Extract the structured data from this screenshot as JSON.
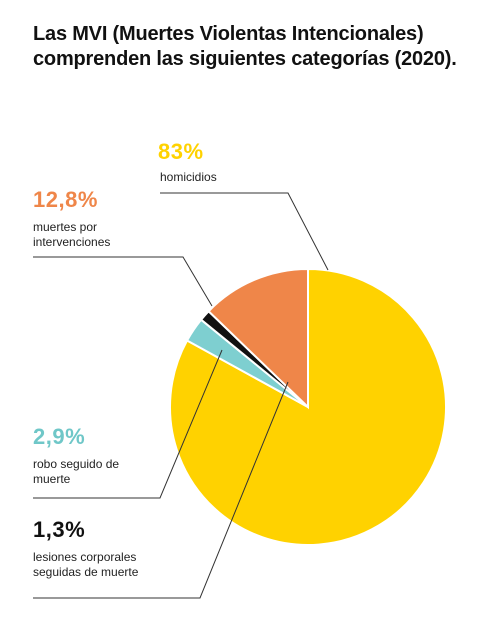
{
  "title": "Las MVI (Muertes Violentas Intencionales) comprenden las siguientes categorías (2020).",
  "chart_data": {
    "type": "pie",
    "slices": [
      {
        "value_label": "83%",
        "label": "homicidios",
        "value": 83,
        "color": "#FFD200"
      },
      {
        "value_label": "12,8%",
        "label": "muertes por intervenciones",
        "value": 12.8,
        "color": "#EF8649"
      },
      {
        "value_label": "1,3%",
        "label": "lesiones corporales seguidas de muerte",
        "value": 1.3,
        "color": "#111111"
      },
      {
        "value_label": "2,9%",
        "label": "robo seguido de muerte",
        "value": 2.9,
        "color": "#7ECFD0"
      }
    ]
  }
}
